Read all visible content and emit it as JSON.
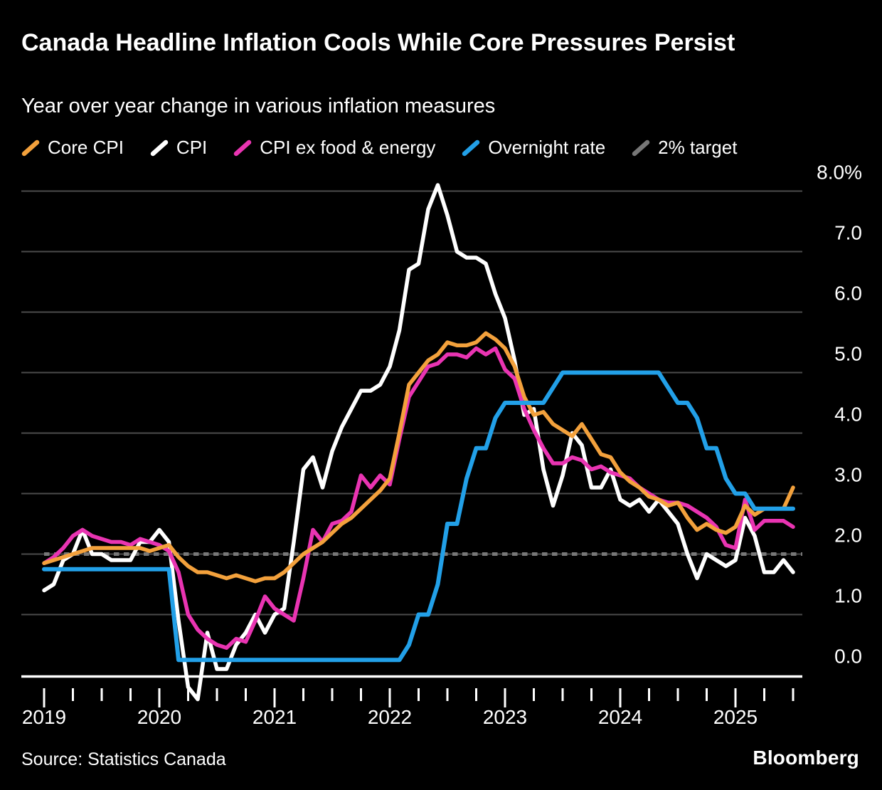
{
  "chart_data": {
    "type": "line",
    "title": "Canada Headline Inflation Cools While Core Pressures Persist",
    "subtitle": "Year over year change in various inflation measures",
    "source": "Source: Statistics Canada",
    "brand": "Bloomberg",
    "x_unit": "month",
    "x_start": "2019-01",
    "x_end": "2025-07",
    "x_tick_years": [
      "2019",
      "2020",
      "2021",
      "2022",
      "2023",
      "2024",
      "2025"
    ],
    "x_minor_tick_interval_months": 3,
    "ylim": [
      0,
      8
    ],
    "grid": true,
    "legend_position": "top",
    "y_ticks": [
      {
        "value": 0,
        "label": "0.0"
      },
      {
        "value": 1,
        "label": "1.0"
      },
      {
        "value": 2,
        "label": "2.0"
      },
      {
        "value": 3,
        "label": "3.0"
      },
      {
        "value": 4,
        "label": "4.0"
      },
      {
        "value": 5,
        "label": "5.0"
      },
      {
        "value": 6,
        "label": "6.0"
      },
      {
        "value": 7,
        "label": "7.0"
      },
      {
        "value": 8,
        "label": "8.0%"
      }
    ],
    "colors": {
      "background": "#000000",
      "gridline": "#4b4b4b",
      "axis": "#ffffff",
      "text": "#ffffff",
      "target": "#777777"
    },
    "series": [
      {
        "name": "Core CPI",
        "color": "#f3a13c",
        "values": [
          1.85,
          1.9,
          1.95,
          2.0,
          2.05,
          2.1,
          2.1,
          2.1,
          2.1,
          2.1,
          2.1,
          2.05,
          2.1,
          2.15,
          1.95,
          1.8,
          1.7,
          1.7,
          1.65,
          1.6,
          1.65,
          1.6,
          1.55,
          1.6,
          1.6,
          1.7,
          1.85,
          2.0,
          2.1,
          2.2,
          2.35,
          2.5,
          2.6,
          2.75,
          2.9,
          3.05,
          3.25,
          4.0,
          4.8,
          5.0,
          5.2,
          5.3,
          5.5,
          5.45,
          5.45,
          5.5,
          5.65,
          5.55,
          5.4,
          5.1,
          4.6,
          4.3,
          4.35,
          4.15,
          4.05,
          3.95,
          4.15,
          3.9,
          3.65,
          3.6,
          3.35,
          3.2,
          3.1,
          2.95,
          2.9,
          2.8,
          2.85,
          2.6,
          2.4,
          2.5,
          2.4,
          2.35,
          2.45,
          2.8,
          2.65,
          2.75,
          2.75,
          2.75,
          3.1
        ]
      },
      {
        "name": "CPI",
        "color": "#ffffff",
        "values": [
          1.4,
          1.5,
          1.9,
          2.0,
          2.4,
          2.0,
          2.0,
          1.9,
          1.9,
          1.9,
          2.2,
          2.2,
          2.4,
          2.2,
          0.9,
          -0.2,
          -0.4,
          0.7,
          0.1,
          0.1,
          0.5,
          0.7,
          1.0,
          0.7,
          1.0,
          1.1,
          2.2,
          3.4,
          3.6,
          3.1,
          3.7,
          4.1,
          4.4,
          4.7,
          4.7,
          4.8,
          5.1,
          5.7,
          6.7,
          6.8,
          7.7,
          8.1,
          7.6,
          7.0,
          6.9,
          6.9,
          6.8,
          6.3,
          5.9,
          5.2,
          4.3,
          4.4,
          3.4,
          2.8,
          3.3,
          4.0,
          3.8,
          3.1,
          3.1,
          3.4,
          2.9,
          2.8,
          2.9,
          2.7,
          2.9,
          2.7,
          2.5,
          2.0,
          1.6,
          2.0,
          1.9,
          1.8,
          1.9,
          2.6,
          2.3,
          1.7,
          1.7,
          1.9,
          1.7
        ]
      },
      {
        "name": "CPI ex food & energy",
        "color": "#e934b2",
        "values": [
          1.85,
          1.95,
          2.1,
          2.3,
          2.4,
          2.3,
          2.25,
          2.2,
          2.2,
          2.15,
          2.25,
          2.2,
          2.15,
          2.05,
          1.7,
          1.0,
          0.75,
          0.6,
          0.5,
          0.45,
          0.6,
          0.55,
          0.9,
          1.3,
          1.1,
          1.0,
          0.9,
          1.6,
          2.4,
          2.2,
          2.5,
          2.55,
          2.7,
          3.3,
          3.1,
          3.3,
          3.15,
          3.9,
          4.6,
          4.85,
          5.1,
          5.15,
          5.3,
          5.3,
          5.25,
          5.4,
          5.3,
          5.4,
          5.05,
          4.9,
          4.4,
          4.05,
          3.75,
          3.5,
          3.5,
          3.6,
          3.55,
          3.4,
          3.45,
          3.35,
          3.3,
          3.25,
          3.1,
          3.0,
          2.9,
          2.85,
          2.85,
          2.8,
          2.7,
          2.6,
          2.45,
          2.15,
          2.1,
          2.9,
          2.4,
          2.55,
          2.55,
          2.55,
          2.45
        ]
      },
      {
        "name": "Overnight rate",
        "color": "#22a0e8",
        "values": [
          1.75,
          1.75,
          1.75,
          1.75,
          1.75,
          1.75,
          1.75,
          1.75,
          1.75,
          1.75,
          1.75,
          1.75,
          1.75,
          1.75,
          0.25,
          0.25,
          0.25,
          0.25,
          0.25,
          0.25,
          0.25,
          0.25,
          0.25,
          0.25,
          0.25,
          0.25,
          0.25,
          0.25,
          0.25,
          0.25,
          0.25,
          0.25,
          0.25,
          0.25,
          0.25,
          0.25,
          0.25,
          0.25,
          0.5,
          1.0,
          1.0,
          1.5,
          2.5,
          2.5,
          3.25,
          3.75,
          3.75,
          4.25,
          4.5,
          4.5,
          4.5,
          4.5,
          4.5,
          4.75,
          5.0,
          5.0,
          5.0,
          5.0,
          5.0,
          5.0,
          5.0,
          5.0,
          5.0,
          5.0,
          5.0,
          4.75,
          4.5,
          4.5,
          4.25,
          3.75,
          3.75,
          3.25,
          3.0,
          3.0,
          2.75,
          2.75,
          2.75,
          2.75,
          2.75
        ]
      },
      {
        "name": "2% target",
        "color": "#777777",
        "dashed": true,
        "constant_value": 2.0
      }
    ]
  }
}
